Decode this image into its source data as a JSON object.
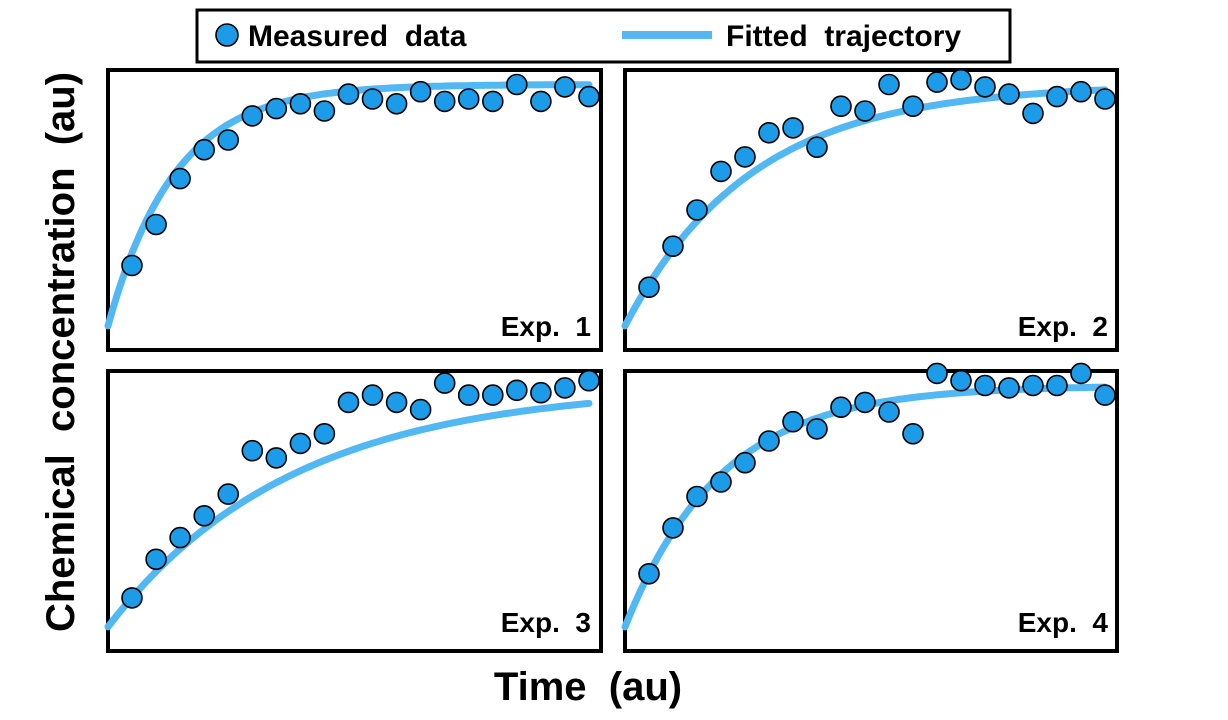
{
  "colors": {
    "marker": "#1c9be8",
    "line": "#52b8f3",
    "frame": "#000000"
  },
  "chart_data": {
    "type": "scatter",
    "xlabel": "Time  (au)",
    "ylabel": "Chemical  concentration  (au)",
    "legend": {
      "placement": "top-center",
      "entries": [
        {
          "label": "Measured  data",
          "kind": "marker"
        },
        {
          "label": "Fitted  trajectory",
          "kind": "line"
        }
      ]
    },
    "xlim": [
      0,
      20.5
    ],
    "ylim": [
      -0.1,
      1.06
    ],
    "grid": false,
    "panels": [
      {
        "label": "Exp.  1",
        "rate": 0.36,
        "measured": {
          "x": [
            1,
            2,
            3,
            4,
            5,
            6,
            7,
            8,
            9,
            10,
            11,
            12,
            13,
            14,
            15,
            16,
            17,
            18,
            19,
            20
          ],
          "y": [
            0.25,
            0.42,
            0.61,
            0.73,
            0.77,
            0.87,
            0.9,
            0.92,
            0.89,
            0.96,
            0.94,
            0.92,
            0.97,
            0.93,
            0.94,
            0.93,
            1.0,
            0.93,
            0.99,
            0.95
          ]
        }
      },
      {
        "label": "Exp.  2",
        "rate": 0.19,
        "measured": {
          "x": [
            1,
            2,
            3,
            4,
            5,
            6,
            7,
            8,
            9,
            10,
            11,
            12,
            13,
            14,
            15,
            16,
            17,
            18,
            19,
            20
          ],
          "y": [
            0.16,
            0.33,
            0.48,
            0.64,
            0.7,
            0.8,
            0.82,
            0.74,
            0.91,
            0.89,
            1.0,
            0.91,
            1.01,
            1.02,
            0.99,
            0.96,
            0.88,
            0.95,
            0.97,
            0.94
          ]
        }
      },
      {
        "label": "Exp.  3",
        "rate": 0.13,
        "measured": {
          "x": [
            1,
            2,
            3,
            4,
            5,
            6,
            7,
            8,
            9,
            10,
            11,
            12,
            13,
            14,
            15,
            16,
            17,
            18,
            19,
            20
          ],
          "y": [
            0.12,
            0.28,
            0.37,
            0.46,
            0.55,
            0.73,
            0.7,
            0.76,
            0.8,
            0.93,
            0.96,
            0.93,
            0.9,
            1.01,
            0.96,
            0.96,
            0.98,
            0.97,
            0.99,
            1.02
          ]
        }
      },
      {
        "label": "Exp.  4",
        "rate": 0.25,
        "measured": {
          "x": [
            1,
            2,
            3,
            4,
            5,
            6,
            7,
            8,
            9,
            10,
            11,
            12,
            13,
            14,
            15,
            16,
            17,
            18,
            19,
            20
          ],
          "y": [
            0.22,
            0.41,
            0.54,
            0.6,
            0.68,
            0.77,
            0.85,
            0.82,
            0.91,
            0.93,
            0.89,
            0.8,
            1.05,
            1.02,
            1.0,
            0.99,
            1.0,
            1.0,
            1.05,
            0.96
          ]
        }
      }
    ]
  }
}
